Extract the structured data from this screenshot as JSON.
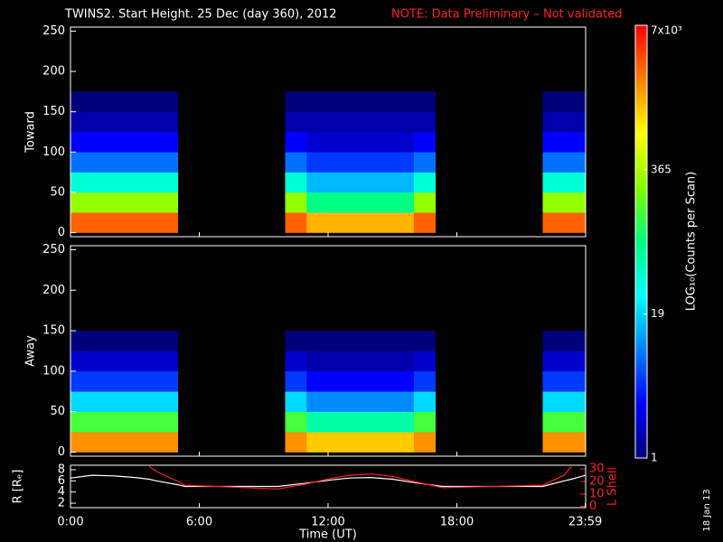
{
  "header": {
    "title": "TWINS2. Start Height. 25 Dec (day 360), 2012",
    "note": "NOTE: Data Preliminary – Not validated",
    "note_color": "#ff2020",
    "date": "18 Jan 13"
  },
  "colorbar": {
    "label": "LOG₁₀(Counts per Scan)",
    "log": true,
    "lim": [
      1,
      7000
    ],
    "ticks": [
      1,
      19,
      365,
      {
        "value": 7000,
        "label": "7x10³"
      }
    ],
    "colormap": [
      "#00007a",
      "#0000ff",
      "#0080ff",
      "#00ffff",
      "#00ff80",
      "#80ff00",
      "#ffff00",
      "#ff8000",
      "#ff0000"
    ]
  },
  "chart_data": [
    {
      "type": "heatmap",
      "ylabel": "Toward",
      "xlim": [
        0,
        24
      ],
      "ylim": [
        -5,
        255
      ],
      "yticks": [
        0,
        50,
        100,
        150,
        200,
        250
      ],
      "xbins": [
        0,
        1,
        2,
        3,
        4,
        5,
        6,
        7,
        8,
        9,
        10,
        11,
        12,
        13,
        14,
        15,
        16,
        17,
        18,
        19,
        20,
        21,
        22,
        23,
        24
      ],
      "ybins": [
        0,
        25,
        50,
        75,
        100,
        125,
        150,
        175,
        200
      ],
      "z": [
        [
          3000,
          300,
          40,
          8,
          3,
          1.5,
          1,
          null
        ],
        [
          3000,
          300,
          40,
          8,
          3,
          1.5,
          1,
          null
        ],
        [
          3000,
          300,
          40,
          8,
          3,
          1.5,
          1,
          null
        ],
        [
          3000,
          300,
          40,
          8,
          3,
          1.5,
          1,
          null
        ],
        [
          3000,
          300,
          40,
          8,
          3,
          1.5,
          1,
          null
        ],
        [
          null,
          null,
          null,
          null,
          null,
          null,
          null,
          null
        ],
        [
          null,
          null,
          null,
          null,
          null,
          null,
          null,
          null
        ],
        [
          null,
          null,
          null,
          null,
          null,
          null,
          null,
          null
        ],
        [
          null,
          null,
          null,
          null,
          null,
          null,
          null,
          null
        ],
        [
          null,
          null,
          null,
          null,
          null,
          null,
          null,
          null
        ],
        [
          3000,
          300,
          40,
          8,
          3,
          1.5,
          1,
          null
        ],
        [
          1500,
          80,
          15,
          5,
          2,
          1.5,
          1,
          null
        ],
        [
          1500,
          80,
          15,
          5,
          2,
          1.5,
          1,
          null
        ],
        [
          1500,
          80,
          15,
          5,
          2,
          1.5,
          1,
          null
        ],
        [
          1500,
          80,
          15,
          5,
          2,
          1.5,
          1,
          null
        ],
        [
          1500,
          80,
          15,
          5,
          2,
          1.5,
          1,
          null
        ],
        [
          3000,
          300,
          40,
          8,
          3,
          1.5,
          1,
          null
        ],
        [
          null,
          null,
          null,
          null,
          null,
          null,
          null,
          null
        ],
        [
          null,
          null,
          null,
          null,
          null,
          null,
          null,
          null
        ],
        [
          null,
          null,
          null,
          null,
          null,
          null,
          null,
          null
        ],
        [
          null,
          null,
          null,
          null,
          null,
          null,
          null,
          null
        ],
        [
          null,
          null,
          null,
          null,
          null,
          null,
          null,
          null
        ],
        [
          3000,
          300,
          40,
          8,
          3,
          1.5,
          1,
          null
        ],
        [
          3000,
          300,
          40,
          8,
          3,
          1.5,
          1,
          null
        ]
      ]
    },
    {
      "type": "heatmap",
      "ylabel": "Away",
      "xlim": [
        0,
        24
      ],
      "ylim": [
        -5,
        255
      ],
      "yticks": [
        0,
        50,
        100,
        150,
        200,
        250
      ],
      "xbins": [
        0,
        1,
        2,
        3,
        4,
        5,
        6,
        7,
        8,
        9,
        10,
        11,
        12,
        13,
        14,
        15,
        16,
        17,
        18,
        19,
        20,
        21,
        22,
        23,
        24
      ],
      "ybins": [
        0,
        25,
        50,
        75,
        100,
        125,
        150,
        175,
        200
      ],
      "z": [
        [
          2000,
          150,
          20,
          5,
          2,
          1,
          null,
          null
        ],
        [
          2000,
          150,
          20,
          5,
          2,
          1,
          null,
          null
        ],
        [
          2000,
          150,
          20,
          5,
          2,
          1,
          null,
          null
        ],
        [
          2000,
          150,
          20,
          5,
          2,
          1,
          null,
          null
        ],
        [
          2000,
          150,
          20,
          5,
          2,
          1,
          null,
          null
        ],
        [
          null,
          null,
          null,
          null,
          null,
          null,
          null,
          null
        ],
        [
          null,
          null,
          null,
          null,
          null,
          null,
          null,
          null
        ],
        [
          null,
          null,
          null,
          null,
          null,
          null,
          null,
          null
        ],
        [
          null,
          null,
          null,
          null,
          null,
          null,
          null,
          null
        ],
        [
          null,
          null,
          null,
          null,
          null,
          null,
          null,
          null
        ],
        [
          2000,
          150,
          20,
          5,
          2,
          1,
          null,
          null
        ],
        [
          1200,
          60,
          10,
          3,
          1.5,
          1,
          null,
          null
        ],
        [
          1200,
          60,
          10,
          3,
          1.5,
          1,
          null,
          null
        ],
        [
          1200,
          60,
          10,
          3,
          1.5,
          1,
          null,
          null
        ],
        [
          1200,
          60,
          10,
          3,
          1.5,
          1,
          null,
          null
        ],
        [
          1200,
          60,
          10,
          3,
          1.5,
          1,
          null,
          null
        ],
        [
          2000,
          150,
          20,
          5,
          2,
          1,
          null,
          null
        ],
        [
          null,
          null,
          null,
          null,
          null,
          null,
          null,
          null
        ],
        [
          null,
          null,
          null,
          null,
          null,
          null,
          null,
          null
        ],
        [
          null,
          null,
          null,
          null,
          null,
          null,
          null,
          null
        ],
        [
          null,
          null,
          null,
          null,
          null,
          null,
          null,
          null
        ],
        [
          null,
          null,
          null,
          null,
          null,
          null,
          null,
          null
        ],
        [
          2000,
          150,
          20,
          5,
          2,
          1,
          null,
          null
        ],
        [
          2000,
          150,
          20,
          5,
          2,
          1,
          null,
          null
        ]
      ]
    },
    {
      "type": "line",
      "ylabel": "R [Rₑ]",
      "y2label": "L Shell",
      "y2color": "#ff2020",
      "xlabel": "Time (UT)",
      "xlim": [
        0,
        24
      ],
      "ylim": [
        1.2,
        8.8
      ],
      "y2lim": [
        -1,
        33
      ],
      "xticks": [
        {
          "value": 0,
          "label": "0:00"
        },
        {
          "value": 6,
          "label": "6:00"
        },
        {
          "value": 12,
          "label": "12:00"
        },
        {
          "value": 18,
          "label": "18:00"
        },
        {
          "value": 23.983,
          "label": "23:59"
        }
      ],
      "yticks": [
        2,
        4,
        6,
        8
      ],
      "y2ticks": [
        0,
        10,
        20,
        30
      ],
      "x": [
        0,
        1,
        2,
        3,
        3.67,
        4,
        5,
        5.33,
        9.67,
        11,
        12,
        13,
        14,
        15,
        16,
        17.33,
        22,
        23,
        23.33,
        24
      ],
      "series": [
        {
          "color": "#ffffff",
          "values": [
            6.5,
            7,
            6.9,
            6.6,
            6.3,
            6.0,
            5.3,
            5,
            5,
            5.6,
            6.1,
            6.5,
            6.6,
            6.3,
            5.7,
            5,
            5,
            6,
            6.3,
            7
          ]
        },
        {
          "color": "#ff2020",
          "axis": "y2",
          "values": [
            null,
            null,
            null,
            null,
            32,
            28,
            20,
            17,
            14,
            18,
            22,
            25,
            26,
            24,
            20,
            15,
            17,
            25,
            32,
            null
          ]
        }
      ]
    }
  ]
}
